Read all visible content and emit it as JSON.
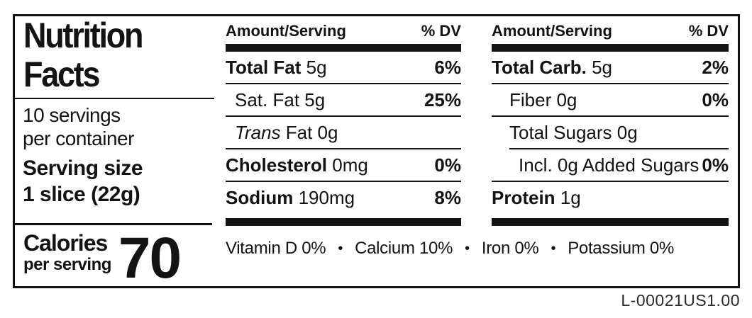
{
  "panel": {
    "title_line1": "Nutrition",
    "title_line2": "Facts",
    "servings_line1": "10 servings",
    "servings_line2": "per container",
    "serving_size_label": "Serving size",
    "serving_size_value": "1 slice (22g)",
    "calories_label": "Calories",
    "calories_subtext": "per serving",
    "calories_value": "70"
  },
  "fat_column": {
    "header_left": "Amount/Serving",
    "header_right": "% DV",
    "rows": [
      {
        "bold": "Total Fat",
        "italic": "",
        "regular": " 5g",
        "dv": "6%"
      },
      {
        "bold": "",
        "italic": "",
        "regular": "Sat. Fat 5g",
        "dv": "25%"
      },
      {
        "bold": "",
        "italic": "Trans",
        "regular": " Fat 0g",
        "dv": ""
      },
      {
        "bold": "Cholesterol",
        "italic": "",
        "regular": " 0mg",
        "dv": "0%"
      },
      {
        "bold": "Sodium",
        "italic": "",
        "regular": " 190mg",
        "dv": "8%"
      }
    ]
  },
  "carb_column": {
    "header_left": "Amount/Serving",
    "header_right": "% DV",
    "rows": [
      {
        "bold": "Total Carb.",
        "italic": "",
        "regular": " 5g",
        "dv": "2%"
      },
      {
        "bold": "",
        "italic": "",
        "regular": "Fiber 0g",
        "dv": "0%"
      },
      {
        "bold": "",
        "italic": "",
        "regular": "Total Sugars 0g",
        "dv": ""
      },
      {
        "bold": "",
        "italic": "",
        "regular": "Incl. 0g Added Sugars",
        "dv": "0%"
      },
      {
        "bold": "Protein",
        "italic": "",
        "regular": " 1g",
        "dv": ""
      }
    ]
  },
  "micronutrients": {
    "separator": "•",
    "items": [
      "Vitamin D 0%",
      "Calcium 10%",
      "Iron 0%",
      "Potassium 0%"
    ]
  },
  "footer": {
    "code": "L-00021US1.00"
  },
  "colors": {
    "ink": "#131313",
    "background": "#ffffff"
  }
}
